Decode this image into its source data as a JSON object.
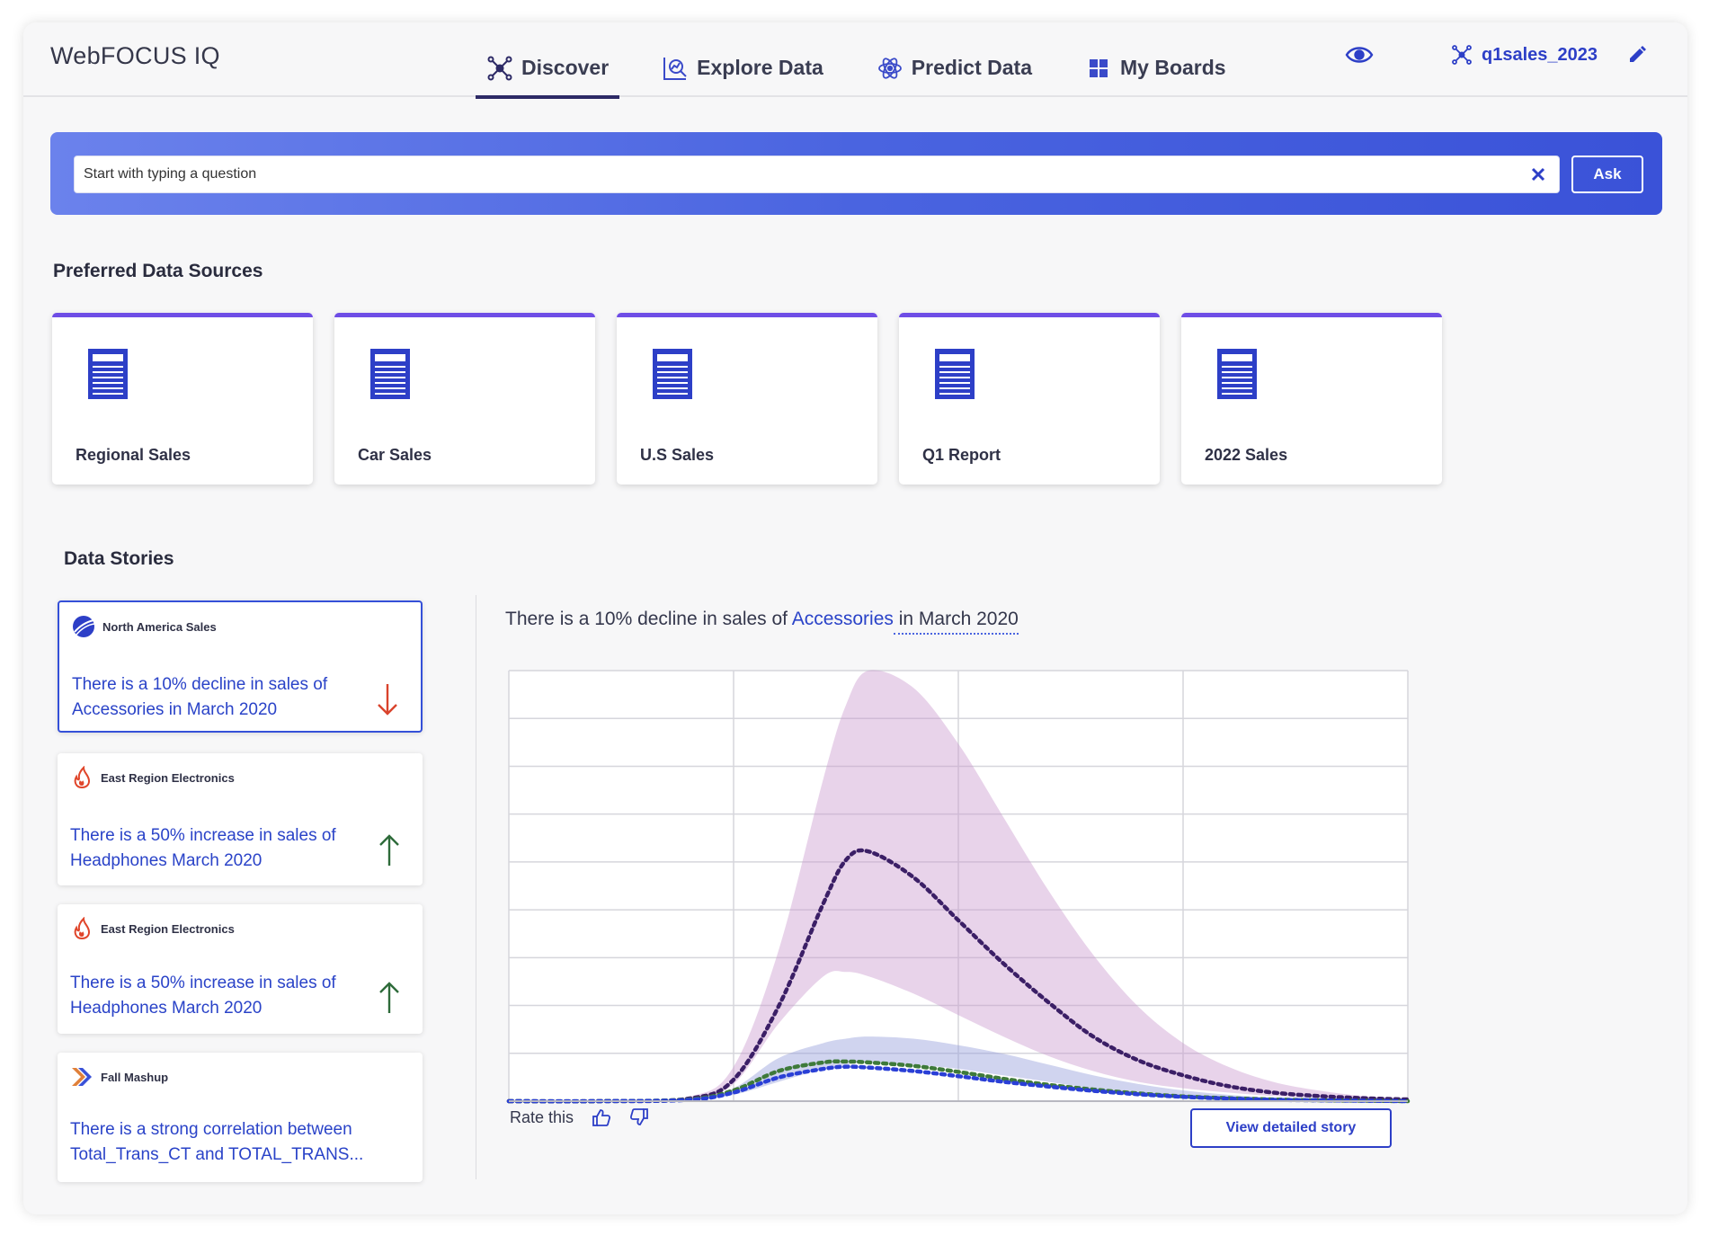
{
  "app": {
    "brand": "WebFOCUS IQ"
  },
  "nav": {
    "tabs": [
      {
        "label": "Discover",
        "icon": "network-icon",
        "active": true
      },
      {
        "label": "Explore Data",
        "icon": "explore-chart-icon",
        "active": false
      },
      {
        "label": "Predict Data",
        "icon": "atom-icon",
        "active": false
      },
      {
        "label": "My Boards",
        "icon": "grid-icon",
        "active": false
      }
    ],
    "board_name": "q1sales_2023"
  },
  "search": {
    "placeholder": "Start with typing a question",
    "value": "",
    "ask_label": "Ask"
  },
  "sources": {
    "title": "Preferred Data Sources",
    "items": [
      "Regional Sales",
      "Car Sales",
      "U.S Sales",
      "Q1 Report",
      "2022 Sales"
    ]
  },
  "stories": {
    "title": "Data Stories",
    "items": [
      {
        "source": "North America Sales",
        "text": "There is a 10% decline in sales of Accessories in March 2020",
        "trend": "down",
        "icon": "globe-icon"
      },
      {
        "source": "East Region Electronics",
        "text": "There is a 50% increase in sales of Headphones March 2020",
        "trend": "up",
        "icon": "flame-icon"
      },
      {
        "source": "East Region Electronics",
        "text": "There is a 50% increase in sales of Headphones March 2020",
        "trend": "up",
        "icon": "flame-icon"
      },
      {
        "source": "Fall Mashup",
        "text": "There is a strong correlation between Total_Trans_CT and TOTAL_TRANS...",
        "trend": "none",
        "icon": "mashup-icon"
      }
    ]
  },
  "insight": {
    "prefix": "There is a 10% decline in sales of ",
    "highlight": "Accessories",
    "suffix": " in March 2020"
  },
  "actions": {
    "rate_label": "Rate this",
    "detail_label": "View detailed story"
  },
  "colors": {
    "accent": "#2d3fc7",
    "banner_start": "#6b82ec",
    "banner_end": "#3a52d8",
    "card_top": "#6e4de6",
    "trend_down": "#d9432c",
    "trend_up": "#2e6b3a"
  },
  "chart_data": {
    "type": "area",
    "x": [
      0,
      4,
      8,
      10,
      12,
      14,
      15,
      16,
      18,
      20,
      22,
      24,
      26,
      28,
      30,
      32,
      34,
      36,
      38,
      40
    ],
    "xlim": [
      0,
      40
    ],
    "ylim": [
      0,
      10
    ],
    "grid": true,
    "series": [
      {
        "band_low": [
          0,
          0,
          0.05,
          0.4,
          1.8,
          2.9,
          3.0,
          2.9,
          2.5,
          2.0,
          1.5,
          1.05,
          0.7,
          0.45,
          0.3,
          0.2,
          0.12,
          0.08,
          0.05,
          0.03
        ],
        "band_high": [
          0,
          0,
          0.1,
          0.8,
          3.5,
          7.5,
          9.2,
          10.0,
          9.6,
          8.3,
          6.6,
          4.9,
          3.4,
          2.2,
          1.35,
          0.8,
          0.45,
          0.25,
          0.12,
          0.06
        ],
        "line": [
          0,
          0,
          0.06,
          0.5,
          2.2,
          4.6,
          5.6,
          5.8,
          5.2,
          4.2,
          3.2,
          2.3,
          1.5,
          0.95,
          0.6,
          0.35,
          0.2,
          0.12,
          0.07,
          0.04
        ]
      },
      {
        "band_low": [
          0,
          0,
          0.02,
          0.15,
          0.45,
          0.75,
          0.85,
          0.9,
          0.85,
          0.75,
          0.6,
          0.45,
          0.3,
          0.2,
          0.12,
          0.07,
          0.04,
          0.02,
          0.01,
          0
        ],
        "band_high": [
          0,
          0,
          0.05,
          0.3,
          1.0,
          1.35,
          1.45,
          1.5,
          1.45,
          1.3,
          1.1,
          0.85,
          0.6,
          0.4,
          0.25,
          0.15,
          0.08,
          0.04,
          0.02,
          0
        ],
        "line": [
          0,
          0,
          0.04,
          0.25,
          0.7,
          0.9,
          0.92,
          0.9,
          0.82,
          0.68,
          0.52,
          0.38,
          0.27,
          0.18,
          0.11,
          0.07,
          0.04,
          0.02,
          0.01,
          0
        ]
      },
      {
        "line": [
          0,
          0,
          0.03,
          0.2,
          0.55,
          0.75,
          0.8,
          0.78,
          0.7,
          0.58,
          0.45,
          0.34,
          0.24,
          0.16,
          0.1,
          0.06,
          0.03,
          0.02,
          0.01,
          0
        ]
      }
    ]
  }
}
